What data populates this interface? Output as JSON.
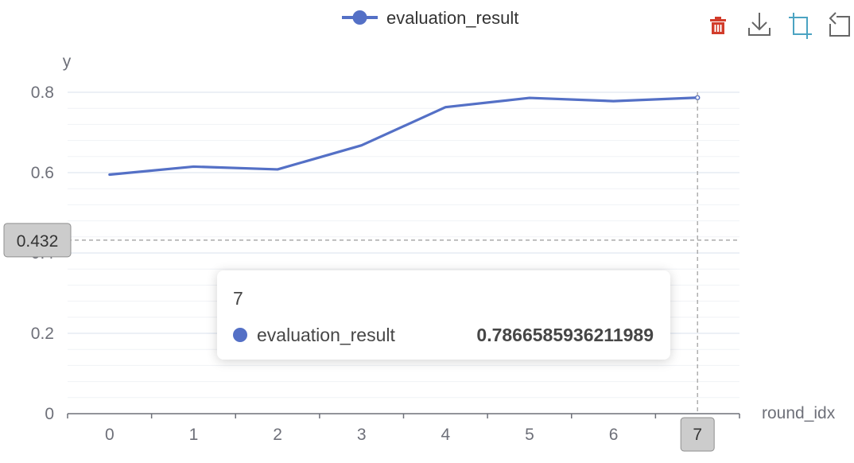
{
  "colors": {
    "series": "#5470c6",
    "axis": "#6e7079",
    "split_line": "#e0e6f1",
    "minor_split_line": "#f0f2f6",
    "pointer_label_bg": "#cccccc",
    "delete_icon": "#d23c2b",
    "crop_icon": "#4ba3c2",
    "toolbox_icon": "#666666"
  },
  "toolbox": {
    "icons": [
      "trash-icon",
      "download-icon",
      "crop-icon",
      "restore-icon"
    ]
  },
  "axis_pointer": {
    "y_label": "0.432",
    "x_label": "7"
  },
  "tooltip": {
    "title": "7",
    "series_name": "evaluation_result",
    "value": "0.7866585936211989"
  },
  "chart_data": {
    "type": "line",
    "x": [
      0,
      1,
      2,
      3,
      4,
      5,
      6,
      7
    ],
    "series": [
      {
        "name": "evaluation_result",
        "values": [
          0.595,
          0.615,
          0.608,
          0.668,
          0.763,
          0.786,
          0.778,
          0.7866585936211989
        ]
      }
    ],
    "xlabel": "round_idx",
    "ylabel": "y",
    "ylim": [
      0,
      0.8
    ],
    "y_ticks": [
      0,
      0.2,
      0.4,
      0.6,
      0.8
    ],
    "y_tick_labels": [
      "0",
      "0.2",
      "0.4",
      "0.6",
      "0.8"
    ],
    "x_tick_labels": [
      "0",
      "1",
      "2",
      "3",
      "4",
      "5",
      "6",
      "7"
    ],
    "grid": true,
    "legend": "top-center",
    "highlighted_index": 7
  }
}
